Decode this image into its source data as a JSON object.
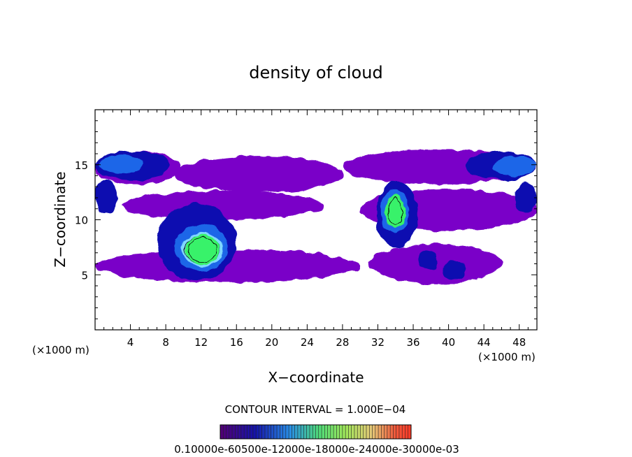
{
  "chart_data": {
    "type": "heatmap",
    "title": "density of cloud",
    "xlabel": "X−coordinate",
    "ylabel": "Z−coordinate",
    "x_unit_left": "(×1000 m)",
    "x_unit_right": "(×1000 m)",
    "xlim": [
      0,
      50
    ],
    "ylim": [
      0,
      20
    ],
    "x_ticks": [
      4,
      8,
      12,
      16,
      20,
      24,
      28,
      32,
      36,
      40,
      44,
      48
    ],
    "y_ticks": [
      5,
      10,
      15
    ],
    "contour_interval_text": "CONTOUR INTERVAL = 1.000E−04",
    "colorbar_labels_text": "0.10000e-60500e-12000e-18000e-24000e-30000e-03",
    "levels": [
      0.0001,
      0.0002,
      0.0003,
      0.0004,
      0.0005,
      0.0006
    ],
    "colors": {
      "level1": "#7a00c8",
      "level2": "#1010b0",
      "level3": "#1f66e8",
      "level4": "#7fd8ff",
      "level5": "#39f26a",
      "background": "#ffffff"
    },
    "regions": [
      {
        "name": "upper-band-left",
        "x": [
          0,
          9.5
        ],
        "z": [
          13.2,
          16.2
        ],
        "level": 1
      },
      {
        "name": "upper-band-mid",
        "x": [
          9,
          28
        ],
        "z": [
          12.5,
          15.8
        ],
        "level": 1
      },
      {
        "name": "upper-band-right",
        "x": [
          28,
          50
        ],
        "z": [
          13.2,
          16.4
        ],
        "level": 1
      },
      {
        "name": "mid-band-left",
        "x": [
          3,
          26
        ],
        "z": [
          10.0,
          12.6
        ],
        "level": 1
      },
      {
        "name": "mid-band-right",
        "x": [
          30,
          50
        ],
        "z": [
          9.0,
          12.8
        ],
        "level": 1
      },
      {
        "name": "lower-band-left",
        "x": [
          0,
          30
        ],
        "z": [
          4.3,
          7.3
        ],
        "level": 1
      },
      {
        "name": "lower-band-right",
        "x": [
          31,
          46
        ],
        "z": [
          4.2,
          7.8
        ],
        "level": 1
      },
      {
        "name": "left-upper-blob",
        "x": [
          0,
          8.5
        ],
        "z": [
          13.6,
          16.2
        ],
        "level": 2
      },
      {
        "name": "left-upper-core",
        "x": [
          0.5,
          5.5
        ],
        "z": [
          14.2,
          15.8
        ],
        "level": 3
      },
      {
        "name": "left-mid-blob",
        "x": [
          0,
          2.5
        ],
        "z": [
          10.6,
          13.6
        ],
        "level": 2
      },
      {
        "name": "right-upper-blob",
        "x": [
          42,
          50
        ],
        "z": [
          13.6,
          16.2
        ],
        "level": 2
      },
      {
        "name": "right-upper-core",
        "x": [
          45,
          50
        ],
        "z": [
          14.0,
          15.8
        ],
        "level": 3
      },
      {
        "name": "right-mid-blob",
        "x": [
          47.5,
          50
        ],
        "z": [
          10.6,
          13.4
        ],
        "level": 2
      },
      {
        "name": "cumulus-left-outer",
        "x": [
          7,
          16
        ],
        "z": [
          4.5,
          11.5
        ],
        "level": 2
      },
      {
        "name": "cumulus-left-inner",
        "x": [
          9,
          15
        ],
        "z": [
          5.3,
          9.6
        ],
        "level": 3
      },
      {
        "name": "cumulus-left-core",
        "x": [
          9.8,
          14.5
        ],
        "z": [
          5.8,
          8.8
        ],
        "level": 4
      },
      {
        "name": "cumulus-left-peak",
        "x": [
          10.2,
          14.2
        ],
        "z": [
          6.0,
          8.6
        ],
        "level": 5
      },
      {
        "name": "cumulus-right-outer",
        "x": [
          31.8,
          36.5
        ],
        "z": [
          7.5,
          13.5
        ],
        "level": 2
      },
      {
        "name": "cumulus-right-inner",
        "x": [
          32.3,
          35.5
        ],
        "z": [
          8.8,
          12.8
        ],
        "level": 3
      },
      {
        "name": "cumulus-right-core",
        "x": [
          32.8,
          35.2
        ],
        "z": [
          9.2,
          12.3
        ],
        "level": 5
      },
      {
        "name": "small-cell-a",
        "x": [
          36.5,
          39
        ],
        "z": [
          5.4,
          7.2
        ],
        "level": 2
      },
      {
        "name": "small-cell-b",
        "x": [
          39.3,
          42
        ],
        "z": [
          4.6,
          6.2
        ],
        "level": 2
      }
    ]
  }
}
